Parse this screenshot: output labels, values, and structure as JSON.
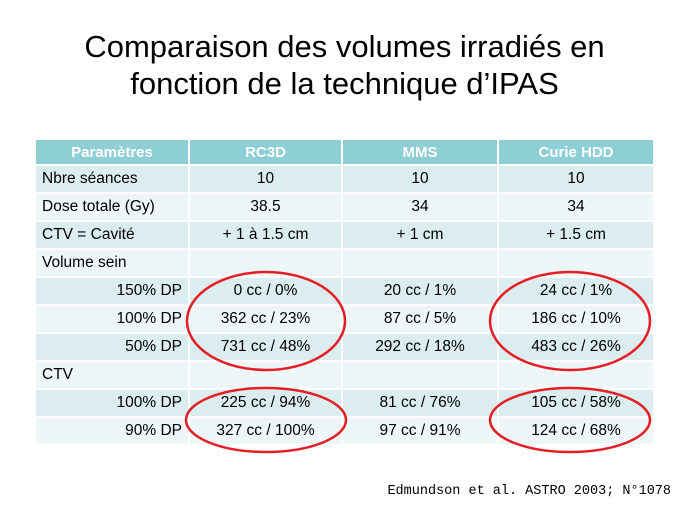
{
  "slide": {
    "title_line1": "Comparaison des volumes irradiés en",
    "title_line2": "fonction de la technique d’IPAS",
    "citation": "Edmundson et al. ASTRO 2003; N°1078"
  },
  "table": {
    "headers": [
      "Paramètres",
      "RC3D",
      "MMS",
      "Curie HDD"
    ],
    "rows": [
      [
        "Nbre séances",
        "10",
        "10",
        "10"
      ],
      [
        "Dose totale (Gy)",
        "38.5",
        "34",
        "34"
      ],
      [
        "CTV = Cavité",
        "+ 1 à 1.5 cm",
        "+ 1 cm",
        "+ 1.5 cm"
      ],
      [
        "Volume sein",
        "",
        "",
        ""
      ],
      [
        "150% DP",
        "0 cc / 0%",
        "20 cc / 1%",
        "24 cc / 1%"
      ],
      [
        "100% DP",
        "362 cc / 23%",
        "87 cc / 5%",
        "186 cc / 10%"
      ],
      [
        "50% DP",
        "731 cc / 48%",
        "292 cc / 18%",
        "483 cc / 26%"
      ],
      [
        "CTV",
        "",
        "",
        ""
      ],
      [
        "100% DP",
        "225 cc / 94%",
        "81 cc / 76%",
        "105 cc / 58%"
      ],
      [
        "90% DP",
        "327 cc / 100%",
        "97 cc / 91%",
        "124 cc / 68%"
      ]
    ]
  },
  "colors": {
    "header_bg": "#8ecfd6",
    "row_dark": "#dcedf0",
    "row_light": "#eef6f7",
    "highlight_ring": "#e31e24"
  }
}
